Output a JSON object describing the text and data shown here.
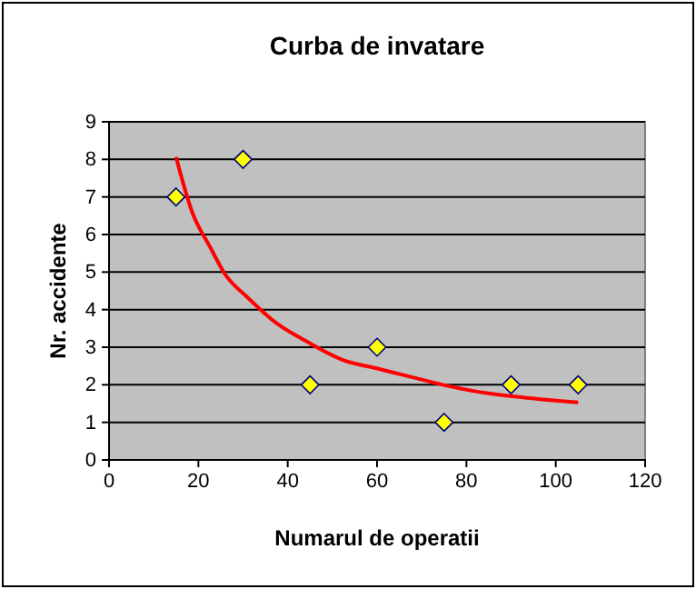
{
  "chart_data": {
    "type": "scatter",
    "title": "Curba de invatare",
    "xlabel": "Numarul de operatii",
    "ylabel": "Nr. accidente",
    "xlim": [
      0,
      120
    ],
    "xticks": [
      0,
      20,
      40,
      60,
      80,
      100,
      120
    ],
    "ylim": [
      0,
      9
    ],
    "yticks": [
      0,
      1,
      2,
      3,
      4,
      5,
      6,
      7,
      8,
      9
    ],
    "grid": "y",
    "marker": "diamond",
    "series": [
      {
        "type": "scatter",
        "color": "#ffff00",
        "x": [
          15,
          30,
          45,
          60,
          75,
          90,
          105
        ],
        "values": [
          7,
          8,
          2,
          3,
          1,
          2,
          2
        ]
      },
      {
        "type": "line",
        "color": "#ff0000",
        "marker": "none",
        "x": [
          15,
          18.6,
          22.7,
          26.1,
          30.8,
          37.6,
          44.3,
          52.4,
          60.5,
          68.6,
          75.4,
          84.9,
          93,
          105
        ],
        "values": [
          8.06,
          6.6,
          5.65,
          4.92,
          4.35,
          3.63,
          3.15,
          2.66,
          2.42,
          2.18,
          1.98,
          1.77,
          1.66,
          1.53
        ]
      }
    ]
  }
}
